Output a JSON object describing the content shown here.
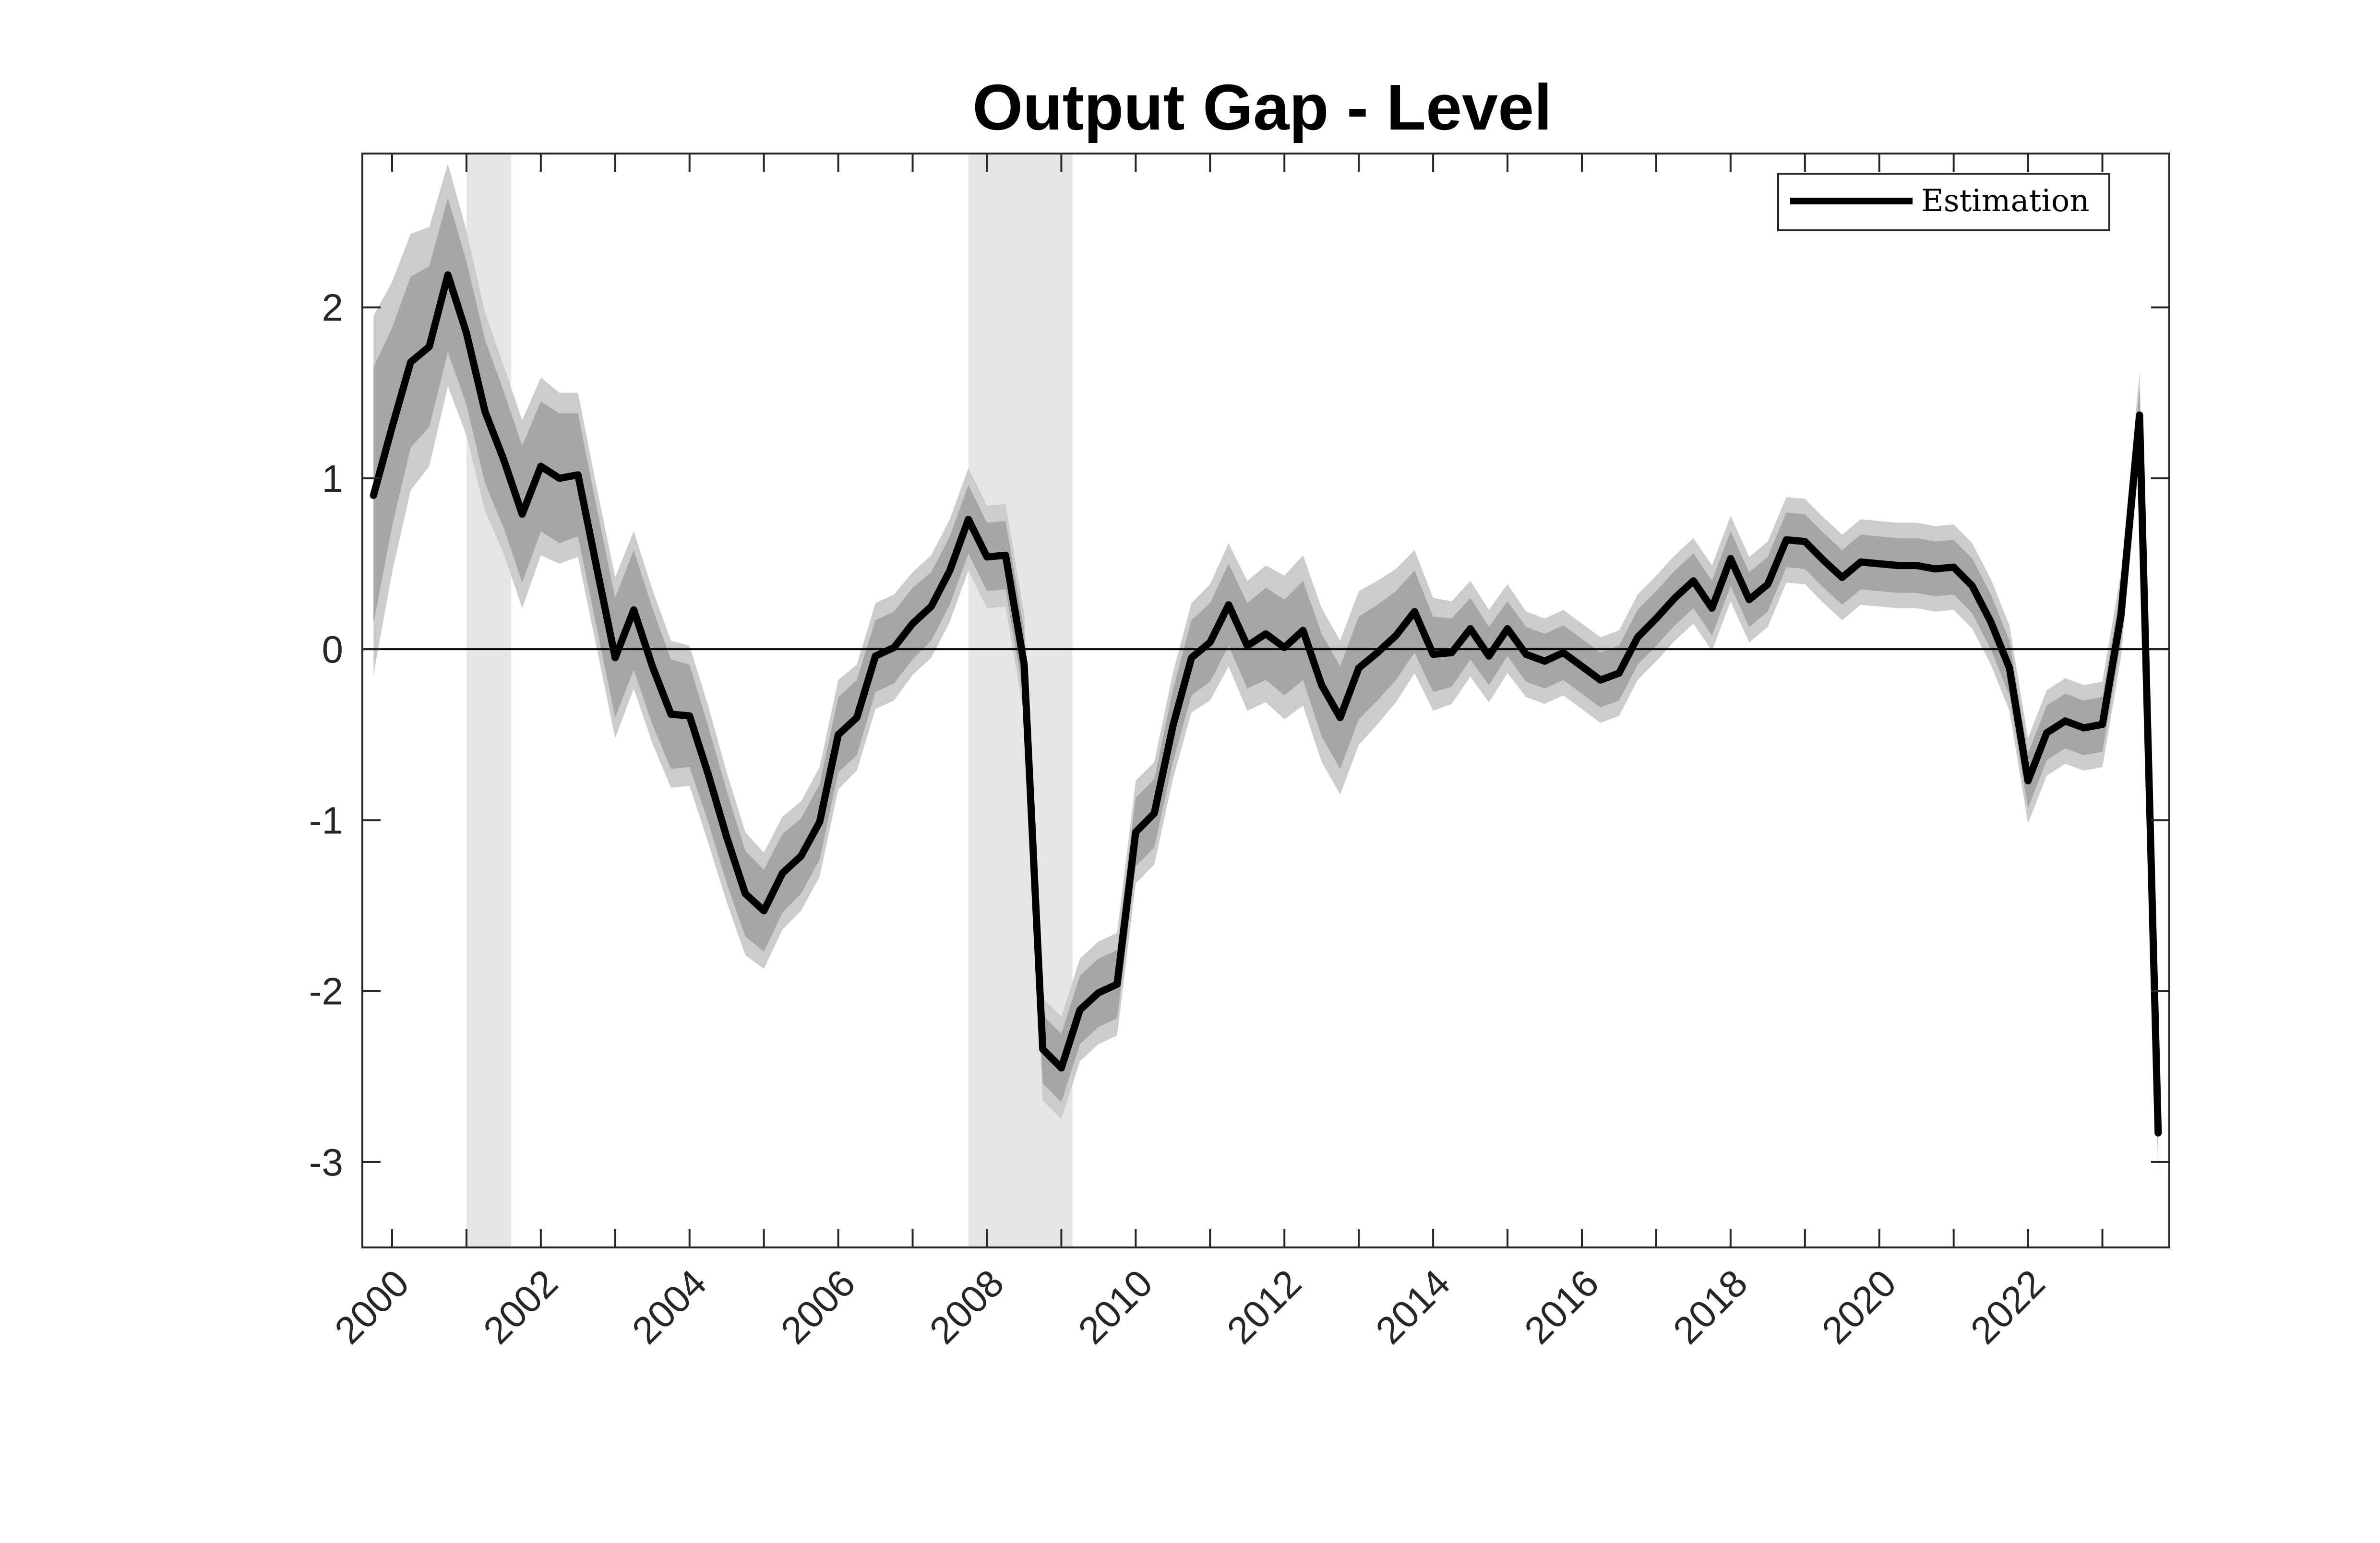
{
  "chart_data": {
    "type": "line",
    "title": "Output Gap - Level",
    "xlabel": "",
    "ylabel": "",
    "xlim": [
      1999.6,
      2023.9
    ],
    "ylim": [
      -3.5,
      2.9
    ],
    "x_ticks": [
      2000,
      2002,
      2004,
      2006,
      2008,
      2010,
      2012,
      2014,
      2016,
      2018,
      2020,
      2022
    ],
    "x_tick_labels": [
      "2000",
      "2002",
      "2004",
      "2006",
      "2008",
      "2010",
      "2012",
      "2014",
      "2016",
      "2018",
      "2020",
      "2022"
    ],
    "y_ticks": [
      -3,
      -2,
      -1,
      0,
      1,
      2
    ],
    "y_tick_labels": [
      "-3",
      "-2",
      "-1",
      "0",
      "1",
      "2"
    ],
    "grid": false,
    "legend": {
      "position": "top-right",
      "entries": [
        "Estimation"
      ]
    },
    "colors": {
      "line": "#000000",
      "inner_band": "#a6a6a6",
      "outer_band": "#cccccc",
      "recession": "#e6e6e6",
      "zero_line": "#000000",
      "axes": "#262626"
    },
    "recessions": [
      [
        2001.0,
        2001.6
      ],
      [
        2007.75,
        2009.15
      ]
    ],
    "band_half_widths": {
      "inner": [
        0.75,
        0.58,
        0.5,
        0.47,
        0.45,
        0.42,
        0.42,
        0.4,
        0.4,
        0.38,
        0.38,
        0.36,
        0.35,
        0.35,
        0.35,
        0.34,
        0.32,
        0.3,
        0.28,
        0.27,
        0.25,
        0.24,
        0.23,
        0.22,
        0.22,
        0.22,
        0.22,
        0.21,
        0.21,
        0.21,
        0.2,
        0.2,
        0.2,
        0.2,
        0.2,
        0.2,
        0.2,
        0.2,
        0.2,
        0.2,
        0.2,
        0.2,
        0.2,
        0.21,
        0.22,
        0.23,
        0.24,
        0.25,
        0.27,
        0.28,
        0.29,
        0.3,
        0.3,
        0.3,
        0.28,
        0.26,
        0.24,
        0.22,
        0.2,
        0.18,
        0.17,
        0.16,
        0.16,
        0.16,
        0.16,
        0.16,
        0.16,
        0.16,
        0.16,
        0.16,
        0.16,
        0.16,
        0.16,
        0.16,
        0.16,
        0.16,
        0.16,
        0.16,
        0.16,
        0.16,
        0.16,
        0.16,
        0.16,
        0.16,
        0.16,
        0.16,
        0.16,
        0.16,
        0.16,
        0.16,
        0.16,
        0.16,
        0.16,
        0.16,
        0.16,
        0.16,
        0.16,
        0.16,
        0.2,
        0.22,
        0.24,
        0.24,
        0.25,
        0.25,
        0.26,
        0.28,
        0.35,
        0.3,
        0.08
      ],
      "outer": [
        1.05,
        0.85,
        0.75,
        0.7,
        0.65,
        0.6,
        0.58,
        0.55,
        0.55,
        0.52,
        0.5,
        0.48,
        0.47,
        0.47,
        0.46,
        0.45,
        0.43,
        0.41,
        0.4,
        0.38,
        0.36,
        0.34,
        0.33,
        0.32,
        0.32,
        0.32,
        0.31,
        0.31,
        0.31,
        0.3,
        0.3,
        0.3,
        0.3,
        0.3,
        0.3,
        0.3,
        0.3,
        0.3,
        0.3,
        0.3,
        0.3,
        0.3,
        0.3,
        0.31,
        0.32,
        0.34,
        0.36,
        0.38,
        0.4,
        0.42,
        0.44,
        0.45,
        0.45,
        0.45,
        0.42,
        0.39,
        0.36,
        0.33,
        0.3,
        0.28,
        0.27,
        0.26,
        0.25,
        0.25,
        0.25,
        0.25,
        0.25,
        0.25,
        0.25,
        0.25,
        0.25,
        0.25,
        0.25,
        0.25,
        0.25,
        0.25,
        0.25,
        0.25,
        0.25,
        0.25,
        0.25,
        0.25,
        0.25,
        0.25,
        0.25,
        0.25,
        0.25,
        0.25,
        0.25,
        0.25,
        0.25,
        0.25,
        0.25,
        0.25,
        0.25,
        0.25,
        0.25,
        0.25,
        0.3,
        0.33,
        0.36,
        0.37,
        0.38,
        0.38,
        0.4,
        0.43,
        0.52,
        0.42,
        0.4
      ]
    },
    "series": [
      {
        "name": "Estimation",
        "x": [
          1999.75,
          2000.0,
          2000.25,
          2000.5,
          2000.75,
          2001.0,
          2001.25,
          2001.5,
          2001.75,
          2002.0,
          2002.25,
          2002.5,
          2002.75,
          2003.0,
          2003.25,
          2003.5,
          2003.75,
          2004.0,
          2004.25,
          2004.5,
          2004.75,
          2005.0,
          2005.25,
          2005.5,
          2005.75,
          2006.0,
          2006.25,
          2006.5,
          2006.75,
          2007.0,
          2007.25,
          2007.5,
          2007.75,
          2008.0,
          2008.25,
          2008.5,
          2008.75,
          2009.0,
          2009.25,
          2009.5,
          2009.75,
          2010.0,
          2010.25,
          2010.5,
          2010.75,
          2011.0,
          2011.25,
          2011.5,
          2011.75,
          2012.0,
          2012.25,
          2012.5,
          2012.75,
          2013.0,
          2013.25,
          2013.5,
          2013.75,
          2014.0,
          2014.25,
          2014.5,
          2014.75,
          2015.0,
          2015.25,
          2015.5,
          2015.75,
          2016.0,
          2016.25,
          2016.5,
          2016.75,
          2017.0,
          2017.25,
          2017.5,
          2017.75,
          2018.0,
          2018.25,
          2018.5,
          2018.75,
          2019.0,
          2019.25,
          2019.5,
          2019.75,
          2020.0,
          2020.25,
          2020.5,
          2020.75,
          2021.0,
          2021.25,
          2021.5,
          2021.75,
          2022.0,
          2022.25,
          2022.5,
          2022.75,
          2023.0,
          2023.25,
          2023.5,
          2023.75
        ],
        "values": [
          0.9,
          1.3,
          1.68,
          1.77,
          2.19,
          1.85,
          1.39,
          1.11,
          0.79,
          1.07,
          1.0,
          1.02,
          0.48,
          -0.05,
          0.23,
          -0.1,
          -0.38,
          -0.39,
          -0.73,
          -1.1,
          -1.43,
          -1.53,
          -1.31,
          -1.21,
          -1.01,
          -0.5,
          -0.4,
          -0.04,
          0.01,
          0.15,
          0.25,
          0.46,
          0.76,
          0.54,
          0.55,
          -0.09,
          -2.34,
          -2.45,
          -2.11,
          -2.01,
          -1.96,
          -1.07,
          -0.96,
          -0.45,
          -0.05,
          0.04,
          0.26,
          0.02,
          0.09,
          0.01,
          0.11,
          -0.21,
          -0.4,
          -0.11,
          -0.02,
          0.08,
          0.22,
          -0.03,
          -0.02,
          0.12,
          -0.04,
          0.12,
          -0.03,
          -0.07,
          -0.02,
          -0.1,
          -0.18,
          -0.14,
          0.07,
          0.18,
          0.3,
          0.4,
          0.24,
          0.53,
          0.29,
          0.38,
          0.64,
          0.63,
          0.52,
          0.42,
          0.51,
          0.5,
          0.49,
          0.49,
          0.47,
          0.48,
          0.37,
          0.16,
          -0.11,
          -0.77,
          -0.49,
          -0.42,
          -0.46,
          -0.44,
          0.2,
          1.37,
          -2.83
        ]
      }
    ]
  }
}
